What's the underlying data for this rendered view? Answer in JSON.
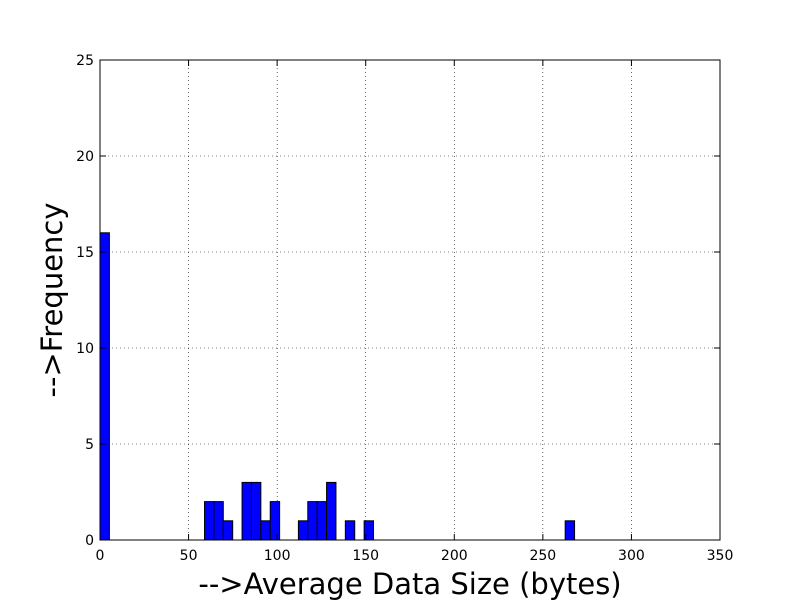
{
  "chart_data": {
    "type": "bar",
    "title": "",
    "xlabel": "-->Average Data Size (bytes)",
    "ylabel": "-->Frequency",
    "xlim": [
      0,
      350
    ],
    "ylim": [
      0,
      25
    ],
    "xticks": [
      "0",
      "50",
      "100",
      "150",
      "200",
      "250",
      "300",
      "350"
    ],
    "yticks": [
      "0",
      "5",
      "10",
      "15",
      "20",
      "25"
    ],
    "grid": true,
    "bar_color": "#0000ff",
    "bins": [
      {
        "start": 0.0,
        "end": 5.3,
        "count": 16
      },
      {
        "start": 59.0,
        "end": 64.3,
        "count": 2
      },
      {
        "start": 64.3,
        "end": 69.6,
        "count": 2
      },
      {
        "start": 69.6,
        "end": 74.9,
        "count": 1
      },
      {
        "start": 80.2,
        "end": 85.5,
        "count": 3
      },
      {
        "start": 85.5,
        "end": 90.8,
        "count": 3
      },
      {
        "start": 90.8,
        "end": 96.1,
        "count": 1
      },
      {
        "start": 96.1,
        "end": 101.4,
        "count": 2
      },
      {
        "start": 112.0,
        "end": 117.3,
        "count": 1
      },
      {
        "start": 117.3,
        "end": 122.6,
        "count": 2
      },
      {
        "start": 122.6,
        "end": 127.9,
        "count": 2
      },
      {
        "start": 127.9,
        "end": 133.2,
        "count": 3
      },
      {
        "start": 138.5,
        "end": 143.8,
        "count": 1
      },
      {
        "start": 149.1,
        "end": 154.4,
        "count": 1
      },
      {
        "start": 262.6,
        "end": 267.9,
        "count": 1
      }
    ]
  }
}
